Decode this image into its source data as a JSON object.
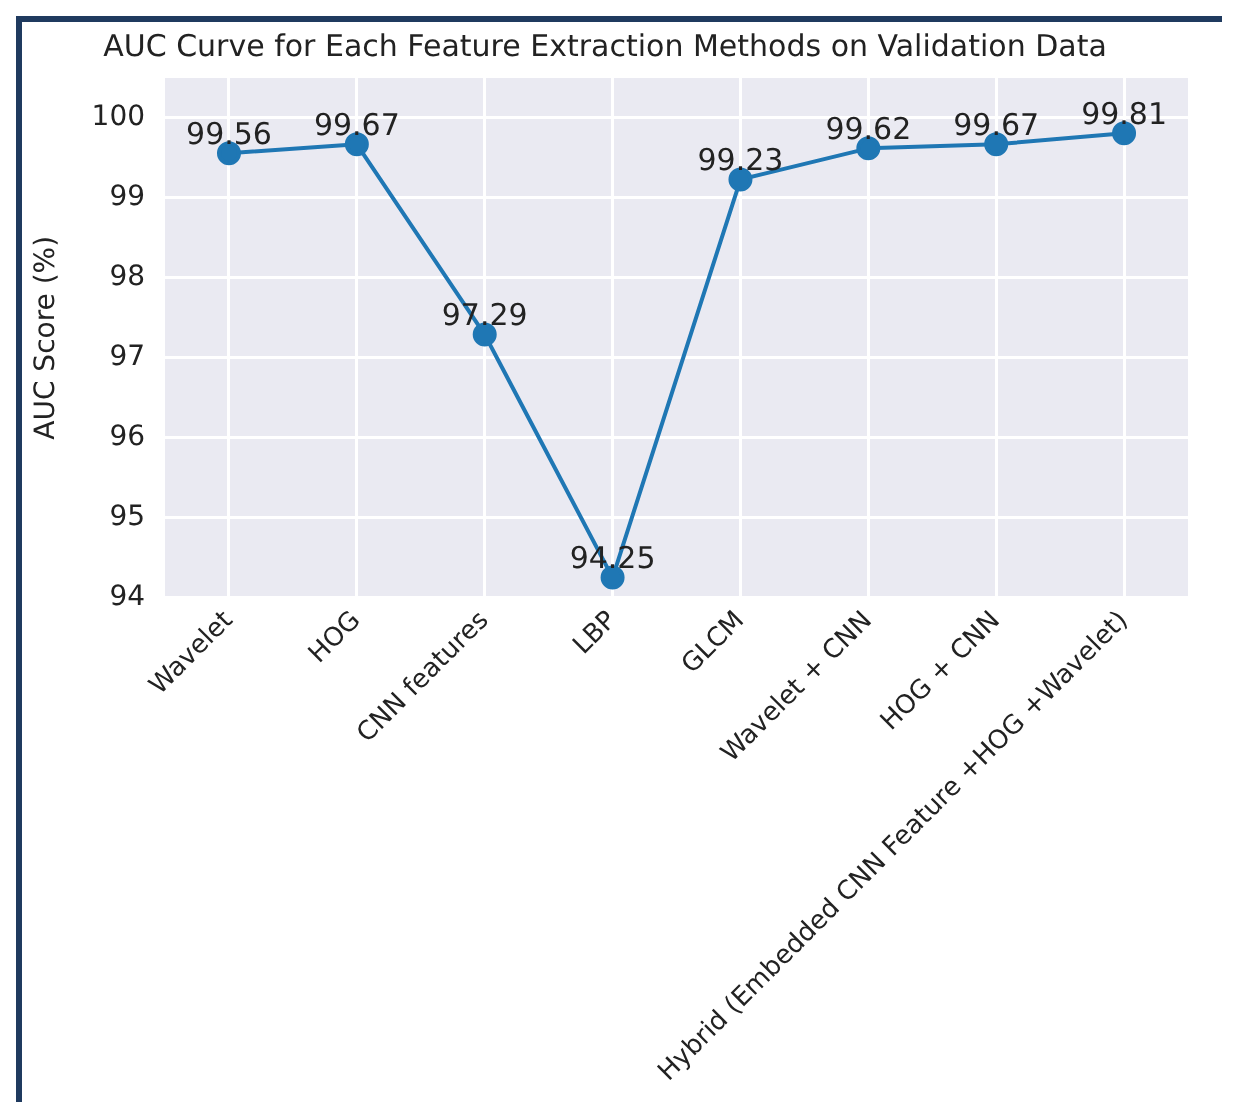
{
  "chart_data": {
    "type": "line",
    "title": "AUC Curve for Each Feature Extraction Methods on Validation Data",
    "ylabel": "AUC Score (%)",
    "categories": [
      "Wavelet",
      "HOG",
      "CNN features",
      "LBP",
      "GLCM",
      "Wavelet + CNN",
      "HOG + CNN",
      "Hybrid (Embedded CNN Feature +HOG +Wavelet)"
    ],
    "series": [
      {
        "color": "#1f77b4",
        "values": [
          99.56,
          99.67,
          97.29,
          94.25,
          99.23,
          99.62,
          99.67,
          99.81
        ]
      }
    ],
    "ylim": [
      94,
      100.5
    ],
    "yticks": [
      94,
      95,
      96,
      97,
      98,
      99,
      100
    ],
    "grid": true,
    "marker": "circle",
    "line_style": "solid",
    "data_labels": true
  }
}
